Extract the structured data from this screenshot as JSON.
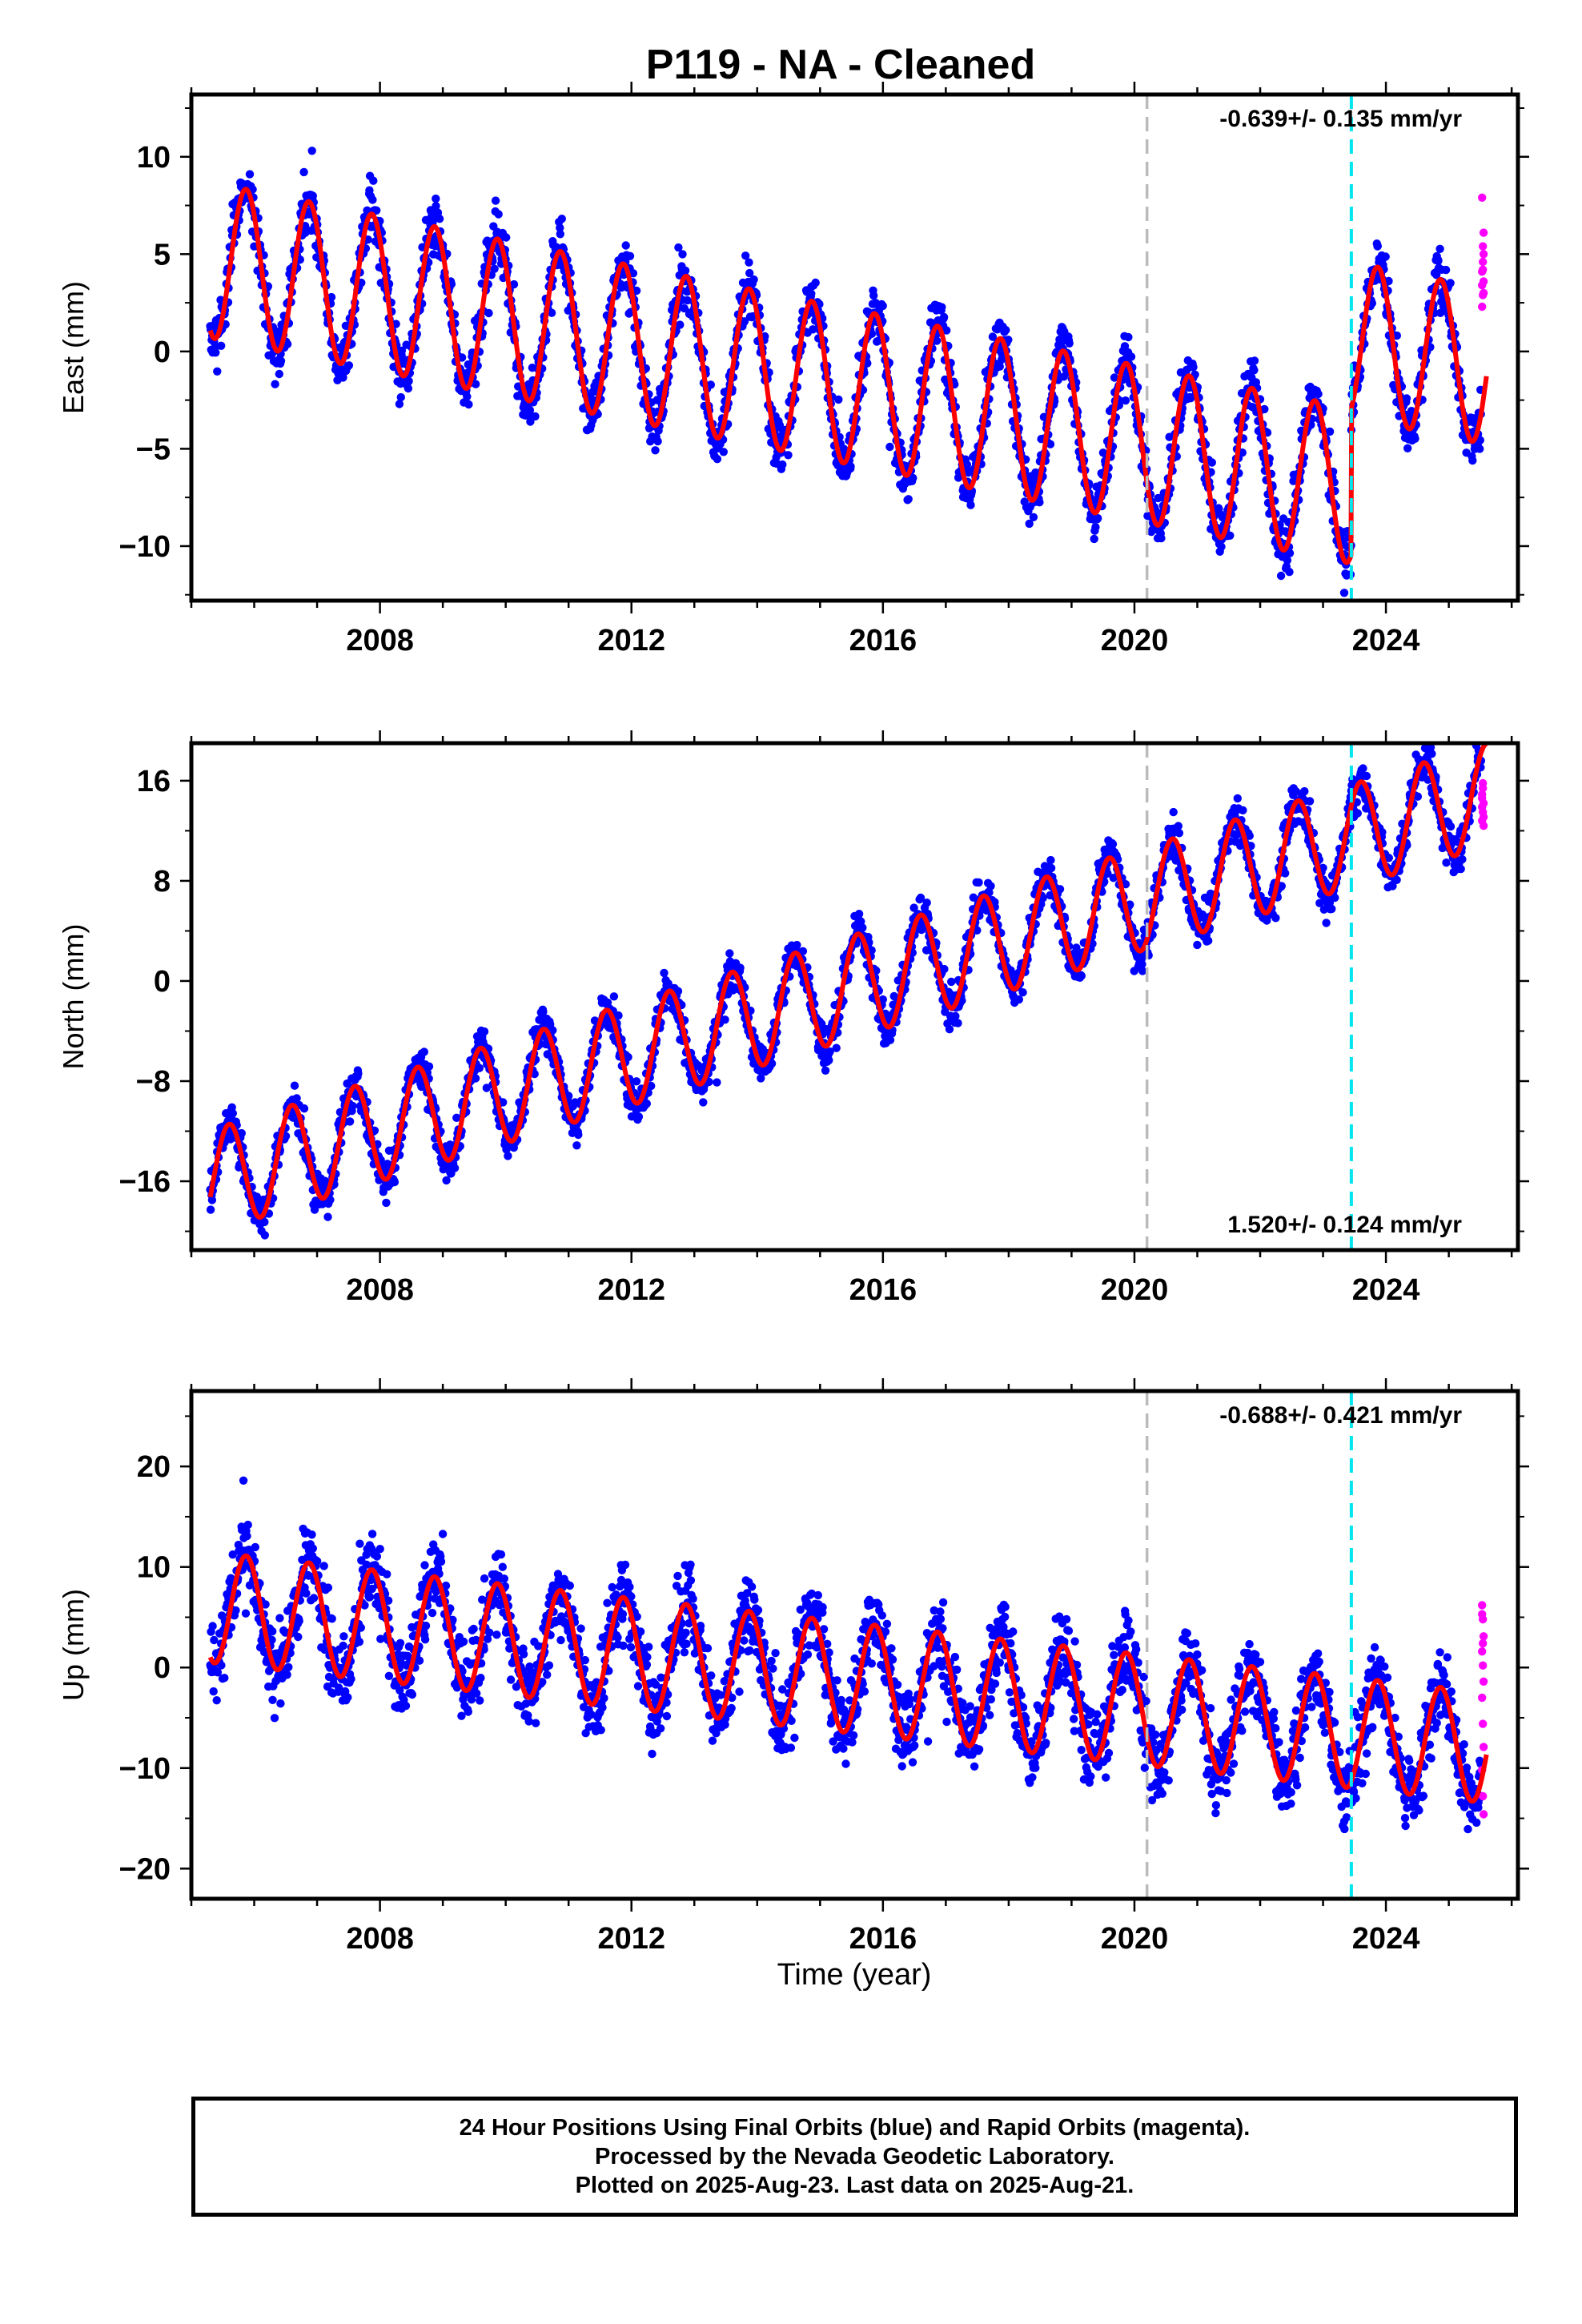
{
  "title": "P119  - NA - Cleaned",
  "xlabel": "Time (year)",
  "caption": [
    "24 Hour Positions Using Final Orbits (blue) and Rapid Orbits (magenta).",
    "Processed by the Nevada Geodetic Laboratory.",
    "Plotted on 2025-Aug-23. Last data on 2025-Aug-21."
  ],
  "colors": {
    "final_orbits": "#0000ff",
    "rapid_orbits": "#ff00ff",
    "model_fit": "#ff0000",
    "gray_marker": "#bbbbbb",
    "cyan_marker": "#00e5ee"
  },
  "chart_data": [
    {
      "type": "scatter",
      "component": "east",
      "ylabel": "East (mm)",
      "xlim": [
        2005.0,
        2026.1
      ],
      "ylim": [
        -12.8,
        13.2
      ],
      "x_ticks": [
        2008,
        2012,
        2016,
        2020,
        2024
      ],
      "y_ticks": [
        -10,
        -5,
        0,
        5,
        10
      ],
      "rate_label": "-0.639+/- 0.135 mm/yr",
      "rate_label_position": "top-right",
      "model": {
        "start": 2005.3,
        "end": 2025.6,
        "offset": 4.7,
        "trend": -0.639,
        "amplitude": 4.0,
        "phase_year": 2005.62,
        "steps": [
          {
            "year": 2023.45,
            "size": 7.5
          }
        ]
      },
      "scatter_noise": 1.4,
      "vertical_markers": [
        {
          "year": 2020.2,
          "style": "gray-dashed"
        },
        {
          "year": 2023.45,
          "style": "cyan-dashed"
        }
      ],
      "rapid_orbit_points": [
        2.3,
        2.9,
        3.6,
        4.1,
        4.6,
        5.0,
        3.4,
        5.4,
        6.1,
        7.9,
        4.2,
        3.0
      ]
    },
    {
      "type": "scatter",
      "component": "north",
      "ylabel": "North (mm)",
      "xlim": [
        2005.0,
        2026.1
      ],
      "ylim": [
        -21.5,
        19.0
      ],
      "x_ticks": [
        2008,
        2012,
        2016,
        2020,
        2024
      ],
      "y_ticks": [
        -16,
        -8,
        0,
        8,
        16
      ],
      "rate_label": "1.520+/- 0.124 mm/yr",
      "rate_label_position": "bottom-right",
      "model": {
        "start": 2005.3,
        "end": 2025.6,
        "offset": -16.0,
        "trend": 1.52,
        "amplitude": 4.1,
        "phase_year": 2005.35,
        "steps": []
      },
      "scatter_noise": 1.6,
      "vertical_markers": [
        {
          "year": 2020.2,
          "style": "gray-dashed"
        },
        {
          "year": 2023.45,
          "style": "cyan-dashed"
        }
      ],
      "rapid_orbit_points": [
        12.8,
        13.5,
        14.2,
        14.9,
        15.4,
        13.1,
        14.6,
        15.8,
        12.4,
        13.9
      ]
    },
    {
      "type": "scatter",
      "component": "up",
      "ylabel": "Up (mm)",
      "xlim": [
        2005.0,
        2026.1
      ],
      "ylim": [
        -23.0,
        27.5
      ],
      "x_ticks": [
        2008,
        2012,
        2016,
        2020,
        2024
      ],
      "y_ticks": [
        -20,
        -10,
        0,
        10,
        20
      ],
      "rate_label": "-0.688+/- 0.421 mm/yr",
      "rate_label_position": "top-right",
      "model": {
        "start": 2005.3,
        "end": 2025.6,
        "offset": 6.0,
        "trend": -0.688,
        "amplitude": 5.5,
        "phase_year": 2005.62,
        "steps": []
      },
      "scatter_noise": 3.6,
      "vertical_markers": [
        {
          "year": 2020.2,
          "style": "gray-dashed"
        },
        {
          "year": 2023.45,
          "style": "cyan-dashed"
        }
      ],
      "rapid_orbit_points": [
        6.2,
        4.8,
        3.1,
        1.6,
        0.2,
        -1.4,
        -3.0,
        -5.6,
        -7.9,
        -10.2,
        -12.8,
        -14.6,
        5.3,
        2.4
      ]
    }
  ]
}
